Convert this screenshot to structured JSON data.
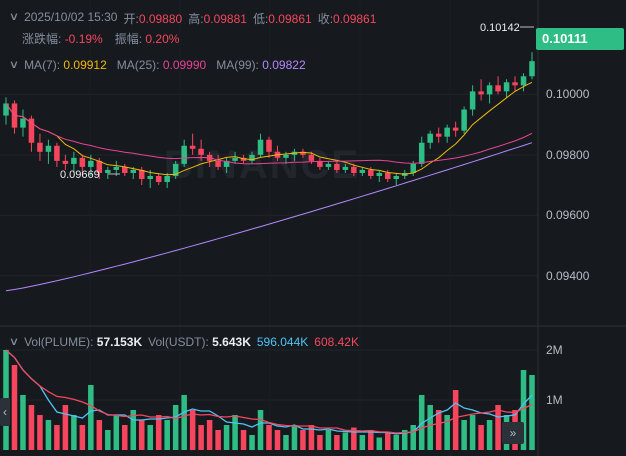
{
  "info": {
    "datetime": "2025/10/02 15:30",
    "open_label": "开:",
    "open": "0.09880",
    "high_label": "高:",
    "high": "0.09881",
    "low_label": "低:",
    "low": "0.09861",
    "close_label": "收:",
    "close": "0.09861",
    "change_label": "涨跌幅:",
    "change": "-0.19%",
    "amp_label": "振幅:",
    "amp": "0.20%"
  },
  "ma": {
    "ma7_label": "MA(7):",
    "ma7": "0.09912",
    "ma25_label": "MA(25):",
    "ma25": "0.09990",
    "ma99_label": "MA(99):",
    "ma99": "0.09822"
  },
  "vol": {
    "plume_label": "Vol(PLUME):",
    "plume": "57.153K",
    "usdt_label": "Vol(USDT):",
    "usdt": "5.643K",
    "ma1": "596.044K",
    "ma2": "608.42K"
  },
  "current_price": "0.10111",
  "high_marker": "0.10142",
  "low_marker": "0.09669",
  "watermark": "BINANCE",
  "colors": {
    "up": "#2ebd85",
    "down": "#f6465d",
    "ma7": "#f0b90b",
    "ma25": "#e84393",
    "ma99": "#b388ff",
    "vol_ma1": "#4fc3f7",
    "vol_ma2": "#f6465d",
    "bg": "#161a1e"
  },
  "icons": {
    "collapse": "chevron-down-icon",
    "scroll_left": "chevron-left-icon",
    "scroll_right": "double-chevron-right-icon"
  },
  "chart_data": {
    "type": "candlestick",
    "price_axis": {
      "ticks": [
        0.094,
        0.096,
        0.098,
        0.1
      ],
      "tick_labels": [
        "0.09400",
        "0.09600",
        "0.09800",
        "0.10000"
      ],
      "ylim": [
        0.0926,
        0.1018
      ]
    },
    "volume_axis": {
      "tick_labels": [
        "2M",
        "1M"
      ],
      "ticks": [
        2000000,
        1000000
      ],
      "ylim": [
        0,
        2400000
      ]
    },
    "candles": [
      [
        0.0993,
        0.0999,
        0.099,
        0.0997
      ],
      [
        0.0997,
        0.0998,
        0.0987,
        0.0989
      ],
      [
        0.0989,
        0.0995,
        0.0986,
        0.0992
      ],
      [
        0.0992,
        0.0993,
        0.0981,
        0.0984
      ],
      [
        0.0984,
        0.0987,
        0.0978,
        0.0981
      ],
      [
        0.0981,
        0.0985,
        0.0977,
        0.0983
      ],
      [
        0.0983,
        0.0984,
        0.0976,
        0.0978
      ],
      [
        0.0978,
        0.098,
        0.0975,
        0.0977
      ],
      [
        0.0977,
        0.0981,
        0.0974,
        0.0979
      ],
      [
        0.0979,
        0.098,
        0.0973,
        0.0976
      ],
      [
        0.0976,
        0.098,
        0.0973,
        0.0978
      ],
      [
        0.0978,
        0.0979,
        0.0972,
        0.0974
      ],
      [
        0.0974,
        0.0976,
        0.0972,
        0.0975
      ],
      [
        0.0975,
        0.0978,
        0.0973,
        0.0976
      ],
      [
        0.0976,
        0.0977,
        0.0973,
        0.0974
      ],
      [
        0.0974,
        0.0976,
        0.0972,
        0.0975
      ],
      [
        0.0975,
        0.0976,
        0.097,
        0.0972
      ],
      [
        0.0972,
        0.0975,
        0.0969,
        0.0973
      ],
      [
        0.0973,
        0.0974,
        0.097,
        0.0971
      ],
      [
        0.0971,
        0.0974,
        0.0969,
        0.0973
      ],
      [
        0.0973,
        0.0978,
        0.0972,
        0.0977
      ],
      [
        0.0977,
        0.0985,
        0.0976,
        0.0983
      ],
      [
        0.0983,
        0.0987,
        0.098,
        0.0982
      ],
      [
        0.0982,
        0.0985,
        0.0978,
        0.098
      ],
      [
        0.098,
        0.0981,
        0.0976,
        0.0978
      ],
      [
        0.0978,
        0.098,
        0.0975,
        0.0976
      ],
      [
        0.0976,
        0.0979,
        0.0974,
        0.0978
      ],
      [
        0.0978,
        0.0981,
        0.0977,
        0.0979
      ],
      [
        0.0979,
        0.098,
        0.0977,
        0.0978
      ],
      [
        0.0978,
        0.0981,
        0.0977,
        0.098
      ],
      [
        0.098,
        0.0987,
        0.0979,
        0.0985
      ],
      [
        0.0985,
        0.0986,
        0.0979,
        0.0981
      ],
      [
        0.0981,
        0.0983,
        0.0978,
        0.0979
      ],
      [
        0.0979,
        0.0981,
        0.0977,
        0.098
      ],
      [
        0.098,
        0.0982,
        0.0978,
        0.0981
      ],
      [
        0.0981,
        0.0982,
        0.0979,
        0.098
      ],
      [
        0.098,
        0.0981,
        0.0977,
        0.0978
      ],
      [
        0.0978,
        0.0979,
        0.0975,
        0.0976
      ],
      [
        0.0976,
        0.0978,
        0.0975,
        0.0977
      ],
      [
        0.0977,
        0.0978,
        0.0974,
        0.0975
      ],
      [
        0.0975,
        0.0977,
        0.0974,
        0.0976
      ],
      [
        0.0976,
        0.0977,
        0.0973,
        0.0974
      ],
      [
        0.0974,
        0.0976,
        0.0973,
        0.0975
      ],
      [
        0.0975,
        0.0976,
        0.0972,
        0.0973
      ],
      [
        0.0973,
        0.0975,
        0.0971,
        0.0974
      ],
      [
        0.0974,
        0.0975,
        0.0971,
        0.0972
      ],
      [
        0.0972,
        0.0974,
        0.097,
        0.0973
      ],
      [
        0.0973,
        0.0975,
        0.0972,
        0.0974
      ],
      [
        0.0974,
        0.0978,
        0.0973,
        0.0977
      ],
      [
        0.0977,
        0.0986,
        0.0976,
        0.0984
      ],
      [
        0.0984,
        0.0988,
        0.0982,
        0.0987
      ],
      [
        0.0987,
        0.0989,
        0.0984,
        0.0986
      ],
      [
        0.0986,
        0.099,
        0.0984,
        0.0989
      ],
      [
        0.0989,
        0.0991,
        0.0986,
        0.0988
      ],
      [
        0.0988,
        0.0996,
        0.0987,
        0.0995
      ],
      [
        0.0995,
        0.1003,
        0.0993,
        0.1001
      ],
      [
        0.1001,
        0.1005,
        0.0998,
        0.1
      ],
      [
        0.1,
        0.1004,
        0.0997,
        0.1003
      ],
      [
        0.1003,
        0.1006,
        0.1,
        0.1001
      ],
      [
        0.1001,
        0.1005,
        0.0999,
        0.1004
      ],
      [
        0.1004,
        0.1006,
        0.1001,
        0.1003
      ],
      [
        0.1003,
        0.1007,
        0.1001,
        0.1006
      ],
      [
        0.1006,
        0.1014,
        0.1005,
        0.1011
      ]
    ],
    "volumes": [
      2000000,
      1700000,
      1100000,
      900000,
      700000,
      600000,
      500000,
      900000,
      700000,
      500000,
      1300000,
      600000,
      400000,
      700000,
      500000,
      800000,
      600000,
      500000,
      700000,
      600000,
      900000,
      1100000,
      800000,
      500000,
      600000,
      400000,
      500000,
      700000,
      400000,
      300000,
      800000,
      500000,
      400000,
      300000,
      500000,
      400000,
      500000,
      300000,
      400000,
      300000,
      350000,
      450000,
      300000,
      400000,
      250000,
      350000,
      300000,
      400000,
      500000,
      1100000,
      900000,
      800000,
      700000,
      1200000,
      600000,
      700000,
      500000,
      600000,
      900000,
      700000,
      800000,
      1600000,
      1500000
    ]
  }
}
